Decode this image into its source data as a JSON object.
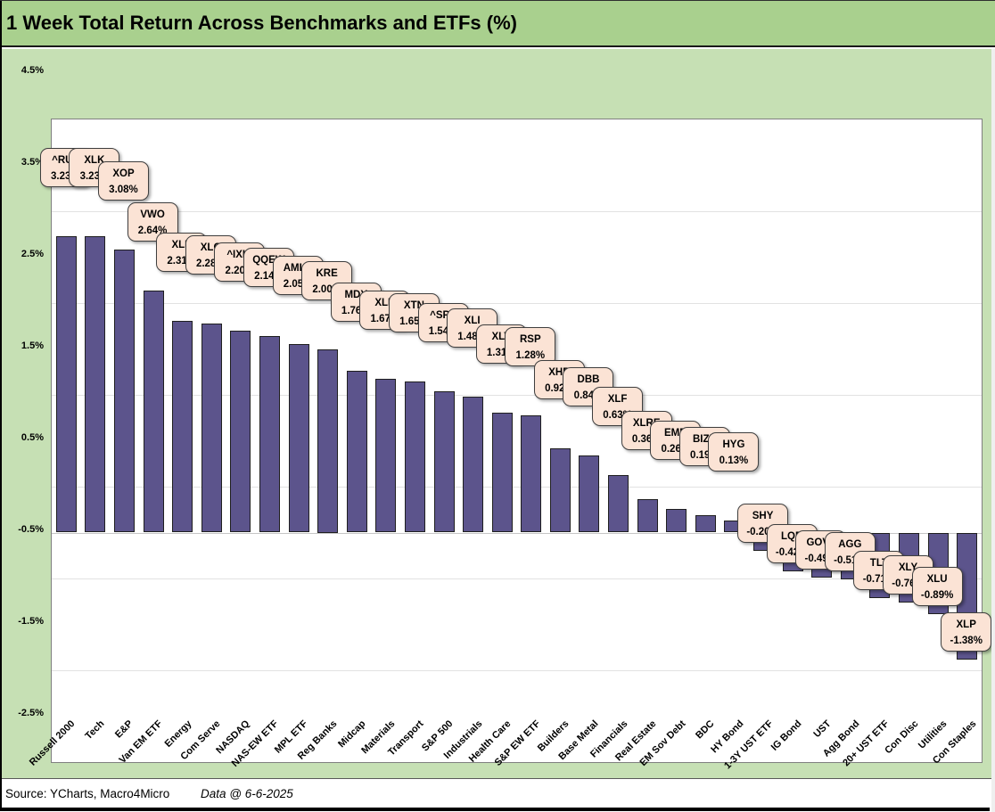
{
  "title": "1 Week Total Return Across Benchmarks and ETFs (%)",
  "footer": {
    "source": "Source: YCharts, Macro4Micro",
    "data_date": "Data @ 6-6-2025"
  },
  "y_axis": {
    "tick_labels": [
      "4.5%",
      "3.5%",
      "2.5%",
      "1.5%",
      "0.5%",
      "-0.5%",
      "-1.5%",
      "-2.5%"
    ]
  },
  "colors": {
    "title_band": "#a9d08e",
    "chart_background": "#c6e0b4",
    "plot_background": "#ffffff",
    "plot_border": "#7f7f7f",
    "gridline": "#e2e2e2",
    "zero_line": "#c6c6c6",
    "bar_fill": "#5c548c",
    "bar_border": "#1f1f1f",
    "callout_fill": "#fbe3d5",
    "callout_border": "#3f3f3f"
  },
  "chart_data": {
    "type": "bar",
    "title": "1 Week Total Return Across Benchmarks and ETFs (%)",
    "xlabel": "",
    "ylabel": "",
    "ylim": [
      -2.5,
      4.5
    ],
    "ytick_step": 1.0,
    "grid": true,
    "legend": "none",
    "categories": [
      "Russell 2000",
      "Tech",
      "E&P",
      "Van EM ETF",
      "Energy",
      "Com Serve",
      "NASDAQ",
      "NAS-EW ETF",
      "MPL ETF",
      "Reg Banks",
      "Midcap",
      "Materials",
      "Transport",
      "S&P 500",
      "Industrials",
      "Health Care",
      "S&P EW ETF",
      "Builders",
      "Base Metal",
      "Financials",
      "Real Estate",
      "EM Sov Debt",
      "BDC",
      "HY Bond",
      "1-3Y UST ETF",
      "IG Bond",
      "UST",
      "Agg Bond",
      "20+ UST ETF",
      "Con Disc",
      "Utilities",
      "Con Staples"
    ],
    "tickers": [
      "^RUT",
      "XLK",
      "XOP",
      "VWO",
      "XLE",
      "XLC",
      "^IXIC",
      "QQEW",
      "AMLP",
      "KRE",
      "MDY",
      "XLB",
      "XTN",
      "^SPX",
      "XLI",
      "XLV",
      "RSP",
      "XHB",
      "DBB",
      "XLF",
      "XLRE",
      "EMB",
      "BIZD",
      "HYG",
      "SHY",
      "LQD",
      "GOVT",
      "AGG",
      "TLT",
      "XLY",
      "XLU",
      "XLP"
    ],
    "values": [
      3.23,
      3.23,
      3.08,
      2.64,
      2.31,
      2.28,
      2.2,
      2.14,
      2.05,
      2.0,
      1.76,
      1.67,
      1.65,
      1.54,
      1.48,
      1.31,
      1.28,
      0.92,
      0.84,
      0.63,
      0.36,
      0.26,
      0.19,
      0.13,
      -0.2,
      -0.42,
      -0.49,
      -0.51,
      -0.71,
      -0.76,
      -0.89,
      -1.38
    ],
    "value_labels": [
      "3.23%",
      "3.23%",
      "3.08%",
      "2.64%",
      "2.31%",
      "2.28%",
      "2.20%",
      "2.14%",
      "2.05%",
      "2.00%",
      "1.76%",
      "1.67%",
      "1.65%",
      "1.54%",
      "1.48%",
      "1.31%",
      "1.28%",
      "0.92%",
      "0.84%",
      "0.63%",
      "0.36%",
      "0.26%",
      "0.19%",
      "0.13%",
      "-0.20%",
      "-0.42%",
      "-0.49%",
      "-0.51%",
      "-0.71%",
      "-0.76%",
      "-0.89%",
      "-1.38%"
    ]
  }
}
